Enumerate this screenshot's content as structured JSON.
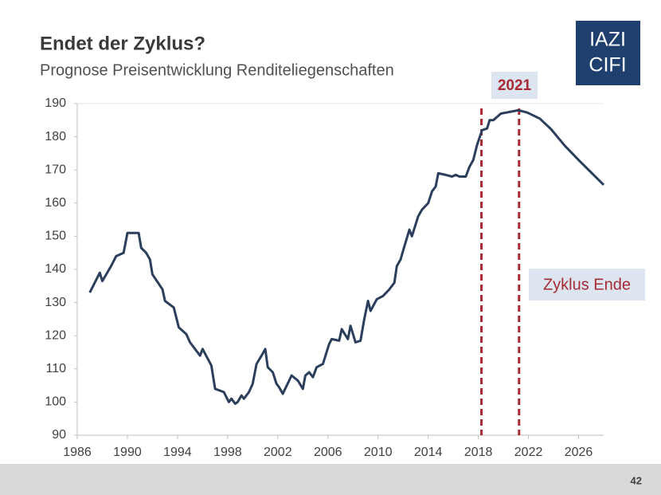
{
  "title": "Endet der Zyklus?",
  "subtitle": "Prognose Preisentwicklung Renditeliegenschaften",
  "logo": [
    "IAZI",
    "CIFI"
  ],
  "page_number": "42",
  "chart_data": {
    "type": "line",
    "color": "#2b3f5c",
    "x": [
      1987.0,
      1987.8,
      1988.0,
      1988.7,
      1989.1,
      1989.7,
      1990.0,
      1990.4,
      1990.9,
      1991.1,
      1991.5,
      1991.8,
      1992.0,
      1992.8,
      1993.0,
      1993.7,
      1994.1,
      1994.7,
      1995.0,
      1995.8,
      1996.0,
      1996.7,
      1997.0,
      1997.7,
      1998.1,
      1998.3,
      1998.6,
      1998.8,
      1999.1,
      1999.3,
      1999.7,
      2000.0,
      2000.3,
      2000.7,
      2001.0,
      2001.2,
      2001.6,
      2001.9,
      2002.1,
      2002.4,
      2003.1,
      2003.6,
      2004.0,
      2004.2,
      2004.5,
      2004.8,
      2005.1,
      2005.6,
      2006.1,
      2006.3,
      2006.9,
      2007.1,
      2007.6,
      2007.8,
      2008.2,
      2008.6,
      2008.9,
      2009.2,
      2009.4,
      2009.9,
      2010.4,
      2010.9,
      2011.3,
      2011.5,
      2011.8,
      2012.1,
      2012.5,
      2012.7,
      2013.2,
      2013.5,
      2014.0,
      2014.3,
      2014.6,
      2014.8,
      2015.4,
      2015.9,
      2016.2,
      2016.5,
      2017.0,
      2017.3,
      2017.6,
      2017.9,
      2018.3,
      2018.7,
      2018.9,
      2019.2,
      2019.8,
      2020.5,
      2021.2,
      2021.9,
      2022.9,
      2023.8,
      2024.9,
      2026.0,
      2028.0
    ],
    "values": [
      133,
      139,
      136.5,
      141,
      144,
      145,
      151,
      151,
      151,
      146.5,
      145,
      143,
      138.5,
      134,
      130.5,
      128.5,
      122.5,
      120.5,
      118,
      114,
      116,
      111,
      104,
      103,
      100,
      101,
      99.5,
      100,
      102,
      101,
      103,
      105.5,
      111.5,
      114,
      116,
      110.5,
      109,
      105.5,
      104.5,
      102.5,
      108,
      106.5,
      104,
      108,
      109,
      107.5,
      110.5,
      111.5,
      117.5,
      119,
      118.5,
      122,
      119,
      123,
      118,
      118.5,
      125,
      130.5,
      127.5,
      131,
      132,
      134,
      136,
      141,
      143,
      147,
      152,
      150,
      156,
      158,
      160,
      163.5,
      165,
      169,
      168.5,
      168,
      168.5,
      168,
      168,
      171,
      173,
      177.5,
      182,
      182.5,
      185,
      185,
      187,
      187.5,
      188,
      187.3,
      185.5,
      182.3,
      177.3,
      173,
      165.5
    ],
    "xlim": [
      1986,
      2028
    ],
    "xticks": [
      1986,
      1990,
      1994,
      1998,
      2002,
      2006,
      2010,
      2014,
      2018,
      2022,
      2026
    ],
    "ylim": [
      90,
      190
    ],
    "yticks": [
      90,
      100,
      110,
      120,
      130,
      140,
      150,
      160,
      170,
      180,
      190
    ],
    "grid": false,
    "vlines": {
      "color": "#a72a35",
      "x": [
        2018.25,
        2021.25
      ]
    },
    "annotations": [
      "2021",
      "Zyklus Ende"
    ]
  }
}
